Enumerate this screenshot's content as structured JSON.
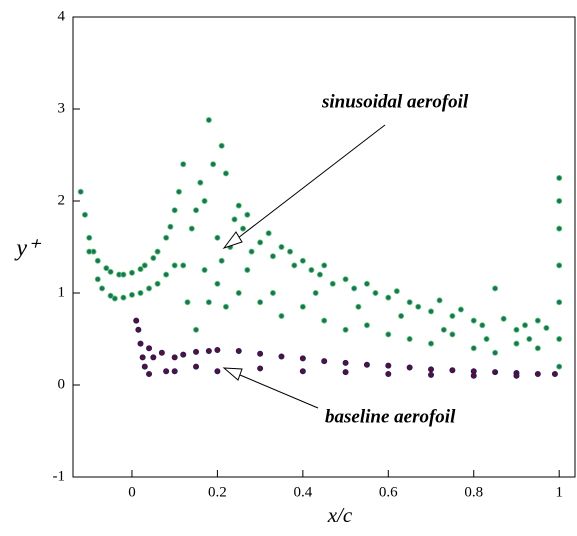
{
  "chart_data": {
    "type": "scatter",
    "xlabel": "x/c",
    "ylabel": "y⁺",
    "xlim": [
      -0.138,
      1.037
    ],
    "ylim": [
      -1,
      4
    ],
    "xticks": [
      0,
      0.2,
      0.4,
      0.6,
      0.8,
      1
    ],
    "yticks": [
      -1,
      0,
      1,
      2,
      3,
      4
    ],
    "series": [
      {
        "name": "sinusoidal aerofoil",
        "color": "#1f6e6a",
        "x": [
          -0.12,
          -0.11,
          -0.1,
          -0.09,
          -0.08,
          -0.06,
          -0.05,
          -0.03,
          -0.02,
          0,
          0.02,
          0.03,
          0.05,
          0.06,
          0.08,
          0.09,
          0.1,
          0.11,
          0.12,
          -0.1,
          -0.08,
          -0.07,
          -0.05,
          -0.04,
          -0.02,
          0,
          0.02,
          0.04,
          0.06,
          0.08,
          0.1,
          0.12,
          0.14,
          0.15,
          0.16,
          0.17,
          0.18,
          0.19,
          0.2,
          0.21,
          0.22,
          0.23,
          0.24,
          0.25,
          0.26,
          0.27,
          0.28,
          0.3,
          0.32,
          0.33,
          0.35,
          0.37,
          0.38,
          0.4,
          0.42,
          0.44,
          0.45,
          0.47,
          0.5,
          0.52,
          0.55,
          0.57,
          0.6,
          0.62,
          0.65,
          0.67,
          0.7,
          0.72,
          0.75,
          0.77,
          0.8,
          0.82,
          0.85,
          0.87,
          0.9,
          0.92,
          0.95,
          0.97,
          0.15,
          0.18,
          0.2,
          0.22,
          0.25,
          0.3,
          0.35,
          0.4,
          0.45,
          0.5,
          0.55,
          0.6,
          0.65,
          0.7,
          0.75,
          0.8,
          0.85,
          0.9,
          0.95,
          0.13,
          0.17,
          0.21,
          0.27,
          0.33,
          0.43,
          0.53,
          0.63,
          0.73,
          0.83,
          0.93,
          1,
          1,
          1,
          1,
          1,
          1,
          1
        ],
        "y": [
          2.1,
          1.85,
          1.6,
          1.45,
          1.35,
          1.27,
          1.23,
          1.2,
          1.2,
          1.22,
          1.26,
          1.3,
          1.38,
          1.45,
          1.6,
          1.72,
          1.9,
          2.1,
          2.4,
          1.45,
          1.15,
          1.05,
          0.97,
          0.94,
          0.95,
          0.98,
          1.0,
          1.05,
          1.1,
          1.2,
          1.3,
          1.3,
          1.7,
          1.9,
          2.2,
          2.0,
          2.88,
          2.4,
          1.6,
          2.6,
          2.3,
          1.5,
          1.8,
          1.95,
          1.7,
          1.85,
          1.45,
          1.55,
          1.65,
          1.4,
          1.5,
          1.45,
          1.3,
          1.35,
          1.25,
          1.2,
          1.3,
          1.1,
          1.15,
          1.05,
          1.1,
          1.0,
          0.95,
          1.02,
          0.9,
          0.85,
          0.8,
          0.92,
          0.75,
          0.82,
          0.7,
          0.65,
          1.05,
          0.72,
          0.6,
          0.65,
          0.7,
          0.62,
          0.6,
          0.9,
          1.1,
          0.85,
          1.0,
          0.9,
          0.75,
          0.85,
          0.7,
          0.6,
          0.65,
          0.55,
          0.5,
          0.45,
          0.55,
          0.4,
          0.35,
          0.45,
          0.4,
          0.9,
          1.25,
          1.35,
          1.25,
          1.0,
          1.0,
          0.85,
          0.75,
          0.6,
          0.5,
          0.5,
          0.2,
          0.5,
          0.9,
          1.3,
          1.7,
          2.0,
          2.25
        ]
      },
      {
        "name": "baseline aerofoil",
        "color": "#5a1030",
        "x": [
          0.01,
          0.015,
          0.02,
          0.025,
          0.03,
          0.04,
          0.05,
          0.07,
          0.08,
          0.1,
          0.12,
          0.15,
          0.18,
          0.2,
          0.25,
          0.3,
          0.35,
          0.4,
          0.45,
          0.5,
          0.55,
          0.6,
          0.65,
          0.7,
          0.75,
          0.8,
          0.85,
          0.9,
          0.95,
          0.99,
          0.04,
          0.1,
          0.15,
          0.2,
          0.3,
          0.4,
          0.5,
          0.6,
          0.7,
          0.8,
          0.9
        ],
        "y": [
          0.7,
          0.6,
          0.45,
          0.3,
          0.2,
          0.4,
          0.3,
          0.35,
          0.15,
          0.3,
          0.33,
          0.36,
          0.37,
          0.38,
          0.37,
          0.34,
          0.31,
          0.29,
          0.26,
          0.24,
          0.22,
          0.21,
          0.19,
          0.17,
          0.16,
          0.15,
          0.14,
          0.13,
          0.12,
          0.12,
          0.12,
          0.15,
          0.2,
          0.15,
          0.18,
          0.15,
          0.14,
          0.12,
          0.11,
          0.1,
          0.1
        ]
      }
    ]
  }
}
